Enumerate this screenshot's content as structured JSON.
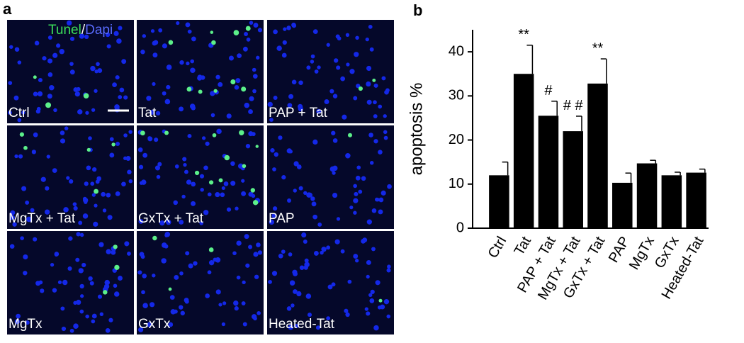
{
  "panel_a": {
    "letter": "a",
    "stain_legend": {
      "tunel": "Tunel",
      "slash": "/",
      "dapi": "Dapi"
    },
    "images": [
      "Ctrl",
      "Tat",
      "PAP + Tat",
      "MgTx + Tat",
      "GxTx + Tat",
      "PAP",
      "MgTx",
      "GxTx",
      "Heated-Tat"
    ]
  },
  "chart_data": {
    "type": "bar",
    "letter": "b",
    "ylabel": "apoptosis %",
    "categories": [
      "Ctrl",
      "Tat",
      "PAP + Tat",
      "MgTx + Tat",
      "GxTx + Tat",
      "PAP",
      "MgTx",
      "GxTx",
      "Heated-Tat"
    ],
    "values": [
      12,
      35,
      25.5,
      22,
      32.8,
      10.3,
      14.7,
      12,
      12.6
    ],
    "errors": [
      3,
      6.5,
      3.3,
      3.4,
      5.6,
      2.2,
      0.7,
      0.7,
      0.8
    ],
    "annotations": [
      null,
      "**",
      "#",
      "# #",
      "**",
      null,
      null,
      null,
      null
    ],
    "color": "#000000",
    "ylim": [
      0,
      45
    ],
    "yticks": [
      0,
      10,
      20,
      30,
      40
    ]
  }
}
